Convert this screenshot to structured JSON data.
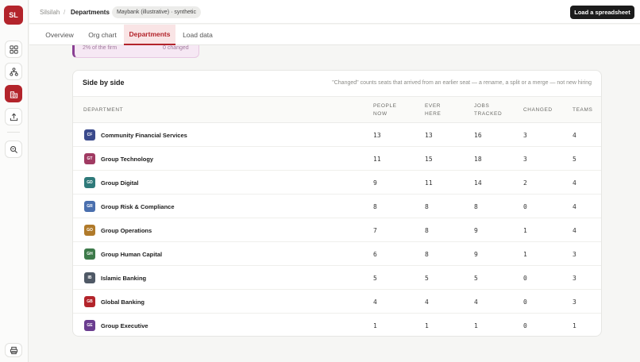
{
  "app": {
    "logo_text": "SL",
    "brand_color": "#b3242b"
  },
  "sidebar": {
    "items": [
      {
        "name": "sidebar-item-overview",
        "icon": "grid-icon",
        "active": false
      },
      {
        "name": "sidebar-item-org-chart",
        "icon": "org-chart-icon",
        "active": false
      },
      {
        "name": "sidebar-item-departments",
        "icon": "buildings-icon",
        "active": true
      },
      {
        "name": "sidebar-item-load-data",
        "icon": "upload-icon",
        "active": false
      },
      {
        "name": "sidebar-item-search",
        "icon": "search-icon",
        "active": false
      }
    ],
    "bottom": {
      "icon": "printer-icon"
    }
  },
  "header": {
    "breadcrumb_root": "Silsilah",
    "breadcrumb_sep": "/",
    "breadcrumb_current": "Departments",
    "dataset_pill": "Maybank (illustrative) · synthetic",
    "load_button": "Load a spreadsheet"
  },
  "tabs": [
    {
      "label": "Overview",
      "active": false
    },
    {
      "label": "Org chart",
      "active": false
    },
    {
      "label": "Departments",
      "active": true
    },
    {
      "label": "Load data",
      "active": false
    }
  ],
  "peek_card": {
    "left_text": "2% of the firm",
    "right_text": "0 changed"
  },
  "table": {
    "title": "Side by side",
    "note": "\"Changed\" counts seats that arrived from an earlier seat — a rename, a split or a merge — not new hiring",
    "headers": {
      "department": "DEPARTMENT",
      "people_now_1": "PEOPLE",
      "people_now_2": "NOW",
      "ever_here_1": "EVER",
      "ever_here_2": "HERE",
      "jobs_tracked_1": "JOBS",
      "jobs_tracked_2": "TRACKED",
      "changed": "CHANGED",
      "teams": "TEAMS"
    },
    "rows": [
      {
        "code": "CF",
        "color": "#3a4a8c",
        "name": "Community Financial Services",
        "people_now": "13",
        "ever_here": "13",
        "jobs_tracked": "16",
        "changed": "3",
        "teams": "4"
      },
      {
        "code": "GT",
        "color": "#a03a62",
        "name": "Group Technology",
        "people_now": "11",
        "ever_here": "15",
        "jobs_tracked": "18",
        "changed": "3",
        "teams": "5"
      },
      {
        "code": "GD",
        "color": "#2f7a7a",
        "name": "Group Digital",
        "people_now": "9",
        "ever_here": "11",
        "jobs_tracked": "14",
        "changed": "2",
        "teams": "4"
      },
      {
        "code": "GR",
        "color": "#4a6fae",
        "name": "Group Risk & Compliance",
        "people_now": "8",
        "ever_here": "8",
        "jobs_tracked": "8",
        "changed": "0",
        "teams": "4"
      },
      {
        "code": "GO",
        "color": "#b07a2a",
        "name": "Group Operations",
        "people_now": "7",
        "ever_here": "8",
        "jobs_tracked": "9",
        "changed": "1",
        "teams": "4"
      },
      {
        "code": "GH",
        "color": "#3d7a4a",
        "name": "Group Human Capital",
        "people_now": "6",
        "ever_here": "8",
        "jobs_tracked": "9",
        "changed": "1",
        "teams": "3"
      },
      {
        "code": "IB",
        "color": "#4f5966",
        "name": "Islamic Banking",
        "people_now": "5",
        "ever_here": "5",
        "jobs_tracked": "5",
        "changed": "0",
        "teams": "3"
      },
      {
        "code": "GB",
        "color": "#b3242b",
        "name": "Global Banking",
        "people_now": "4",
        "ever_here": "4",
        "jobs_tracked": "4",
        "changed": "0",
        "teams": "3"
      },
      {
        "code": "GE",
        "color": "#6a3d8f",
        "name": "Group Executive",
        "people_now": "1",
        "ever_here": "1",
        "jobs_tracked": "1",
        "changed": "0",
        "teams": "1"
      }
    ]
  }
}
